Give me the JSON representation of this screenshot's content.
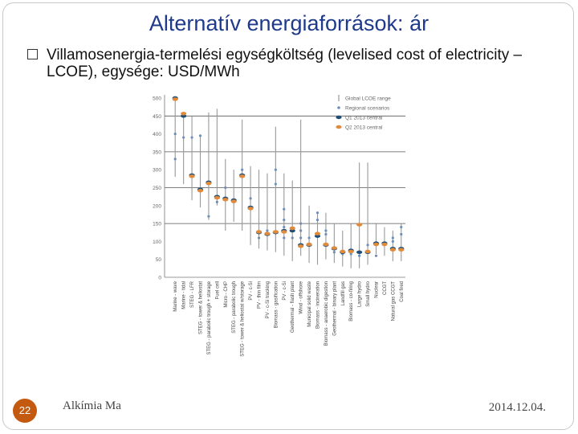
{
  "slide": {
    "title": "Alternatív energiaforrások: ár",
    "bullet": "Villamosenergia-termelési egységköltség (levelised cost of electricity – LCOE), egysége: USD/MWh",
    "page_number": "22",
    "footer_left": "Alkímia Ma",
    "footer_right": "2014.12.04."
  },
  "colors": {
    "title": "#1f3a8a",
    "range": "#999999",
    "regional": "#6f8fb8",
    "h1": "#1f4e79",
    "h2": "#e08a3c",
    "footer_badge": "#c45a10"
  },
  "chart_data": {
    "type": "scatter",
    "title": "",
    "xlabel": "",
    "ylabel": "",
    "ylim": [
      0,
      500
    ],
    "yticks": [
      0,
      50,
      100,
      150,
      200,
      250,
      300,
      350,
      400,
      450,
      500
    ],
    "grid": "horizontal lines at 150, 250, 350, 450",
    "legend": {
      "placement": "top-right",
      "entries": [
        "Global LCOE range",
        "Regional scenarios",
        "Q1 2013 central",
        "Q2 2013 central"
      ]
    },
    "categories": [
      "Marine - wave",
      "Marine - tidal",
      "STEG - LFR",
      "STEG - tower & heliostat",
      "STEG - parabolic trough + storage",
      "Fuel cell",
      "Micro - CHP",
      "STEG - parabolic trough",
      "STEG - tower & heliostat w/storage",
      "PV - c-Si",
      "PV - thin film",
      "PV - c-Si tracking",
      "Biomass - gasification",
      "PV - c-Si",
      "Geothermal - flash plant",
      "Wind - offshore",
      "Municipal solid waste",
      "Biomass - incineration",
      "Biomass - anaerobic digestion",
      "Geothermal - binary plant",
      "Landfill gas",
      "Biomass - co-firing",
      "Large hydro",
      "Small hydro",
      "Nuclear",
      "CCGT",
      "Natural gas CCGT",
      "Coal fired"
    ],
    "series": [
      {
        "name": "Global LCOE range",
        "low": [
          280,
          260,
          215,
          195,
          160,
          200,
          130,
          155,
          130,
          90,
          80,
          75,
          70,
          60,
          45,
          60,
          40,
          35,
          50,
          40,
          30,
          25,
          25,
          35,
          65,
          60,
          45,
          45
        ],
        "high": [
          500,
          460,
          450,
          395,
          460,
          470,
          330,
          300,
          440,
          310,
          300,
          290,
          420,
          290,
          270,
          440,
          200,
          180,
          180,
          150,
          130,
          150,
          320,
          320,
          150,
          140,
          130,
          150
        ]
      },
      {
        "name": "Q1 2013 central",
        "values": [
          500,
          450,
          285,
          245,
          265,
          225,
          220,
          215,
          285,
          195,
          125,
          120,
          125,
          130,
          130,
          90,
          90,
          115,
          90,
          80,
          70,
          75,
          70,
          70,
          95,
          95,
          80,
          80
        ]
      },
      {
        "name": "Q2 2013 central",
        "values": [
          495,
          455,
          280,
          240,
          260,
          220,
          215,
          210,
          280,
          190,
          125,
          120,
          125,
          125,
          135,
          85,
          90,
          120,
          90,
          80,
          70,
          70,
          145,
          70,
          90,
          90,
          75,
          75
        ]
      },
      {
        "name": "Regional scenarios",
        "points": [
          [
            0,
            400
          ],
          [
            0,
            330
          ],
          [
            1,
            390
          ],
          [
            2,
            390
          ],
          [
            3,
            395
          ],
          [
            4,
            170
          ],
          [
            5,
            210
          ],
          [
            6,
            250
          ],
          [
            7,
            210
          ],
          [
            8,
            300
          ],
          [
            9,
            220
          ],
          [
            10,
            110
          ],
          [
            11,
            130
          ],
          [
            12,
            300
          ],
          [
            12,
            260
          ],
          [
            13,
            190
          ],
          [
            13,
            160
          ],
          [
            13,
            140
          ],
          [
            13,
            110
          ],
          [
            14,
            110
          ],
          [
            15,
            150
          ],
          [
            15,
            130
          ],
          [
            15,
            110
          ],
          [
            16,
            110
          ],
          [
            17,
            180
          ],
          [
            17,
            160
          ],
          [
            18,
            130
          ],
          [
            18,
            120
          ],
          [
            19,
            70
          ],
          [
            20,
            65
          ],
          [
            21,
            65
          ],
          [
            22,
            60
          ],
          [
            23,
            90
          ],
          [
            24,
            60
          ],
          [
            26,
            110
          ],
          [
            26,
            100
          ],
          [
            27,
            140
          ],
          [
            27,
            120
          ]
        ]
      }
    ]
  }
}
